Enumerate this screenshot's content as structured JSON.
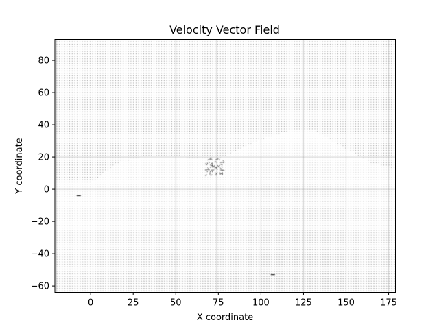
{
  "chart_data": {
    "type": "quiver",
    "title": "Velocity Vector Field",
    "xlabel": "X coordinate",
    "ylabel": "Y coordinate",
    "xlim": [
      -21,
      179
    ],
    "ylim": [
      -64,
      93
    ],
    "xticks": [
      0,
      25,
      50,
      75,
      100,
      125,
      150,
      175
    ],
    "yticks": [
      -60,
      -40,
      -20,
      0,
      20,
      40,
      60,
      80
    ],
    "grid_spacing": 1.5,
    "ambient_color": "#3a3a3a",
    "free_surface_profile": [
      {
        "x": -20,
        "y": 4
      },
      {
        "x": 0,
        "y": 4
      },
      {
        "x": 15,
        "y": 16
      },
      {
        "x": 30,
        "y": 20
      },
      {
        "x": 45,
        "y": 21
      },
      {
        "x": 60,
        "y": 19
      },
      {
        "x": 75,
        "y": 19
      },
      {
        "x": 90,
        "y": 26
      },
      {
        "x": 100,
        "y": 31
      },
      {
        "x": 115,
        "y": 36
      },
      {
        "x": 130,
        "y": 37
      },
      {
        "x": 150,
        "y": 25
      },
      {
        "x": 165,
        "y": 16
      },
      {
        "x": 178,
        "y": 13
      }
    ],
    "turbulent_zone": {
      "x": [
        68,
        78
      ],
      "y": [
        8,
        19
      ]
    },
    "stray_vectors": [
      {
        "x": 107,
        "y": -53
      },
      {
        "x": -7,
        "y": -4
      }
    ]
  }
}
